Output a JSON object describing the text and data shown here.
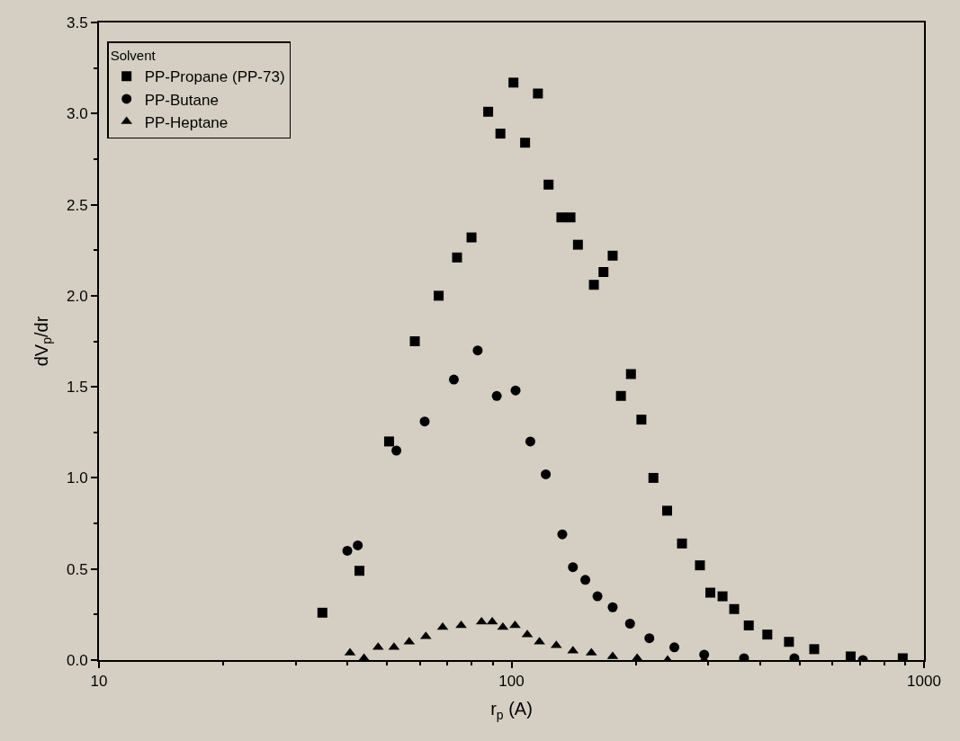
{
  "chart_data": {
    "type": "scatter",
    "xlabel": "r$_{p}$ (A)",
    "ylabel": "dV$_{p}$/dr",
    "legend_title": "Solvent",
    "legend": "top left",
    "log": "x",
    "grid": false,
    "xlim": [
      10,
      1000
    ],
    "xticks": [
      10,
      100,
      1000
    ],
    "ylim": [
      0,
      3.5
    ],
    "yticks": [
      {
        "value": 0,
        "label": "0.0"
      },
      {
        "value": 0.5,
        "label": "0.5"
      },
      {
        "value": 1,
        "label": "1.0"
      },
      {
        "value": 1.5,
        "label": "1.5"
      },
      {
        "value": 2,
        "label": "2.0"
      },
      {
        "value": 2.5,
        "label": "2.5"
      },
      {
        "value": 3,
        "label": "3.0"
      },
      {
        "value": 3.5,
        "label": "3.5"
      }
    ],
    "series": [
      {
        "name": "PP-Propane (PP-73)",
        "color": "#000000",
        "marker": "square",
        "x": [
          34.8,
          42.8,
          50.5,
          58.3,
          66.6,
          73.8,
          80.0,
          87.8,
          94.0,
          101.1,
          107.9,
          115.9,
          123.0,
          132.1,
          139.0,
          144.9,
          158.4,
          167.1,
          175.9,
          184.2,
          194.8,
          206.5,
          220.8,
          238.4,
          259.0,
          286.3,
          303.4,
          324.8,
          346.6,
          376.0,
          417.0,
          470.6,
          541.8,
          664,
          888
        ],
        "values": [
          0.26,
          0.49,
          1.2,
          1.75,
          2.0,
          2.21,
          2.32,
          3.01,
          2.89,
          3.17,
          2.84,
          3.11,
          2.61,
          2.43,
          2.43,
          2.28,
          2.06,
          2.13,
          2.22,
          1.45,
          1.57,
          1.32,
          1.0,
          0.82,
          0.64,
          0.52,
          0.37,
          0.35,
          0.28,
          0.19,
          0.14,
          0.1,
          0.06,
          0.02,
          0.01
        ]
      },
      {
        "name": "PP-Butane",
        "color": "#000000",
        "marker": "circle",
        "x": [
          40.0,
          42.4,
          52.6,
          61.6,
          72.5,
          82.8,
          92.1,
          102.3,
          111.1,
          121.1,
          132.8,
          140.9,
          151.0,
          161.6,
          175.9,
          193.8,
          215.9,
          248.2,
          293.2,
          366.2,
          485.0,
          711
        ],
        "values": [
          0.6,
          0.63,
          1.15,
          1.31,
          1.54,
          1.7,
          1.45,
          1.48,
          1.2,
          1.02,
          0.69,
          0.51,
          0.44,
          0.35,
          0.29,
          0.2,
          0.12,
          0.07,
          0.03,
          0.01,
          0.01,
          0.0
        ]
      },
      {
        "name": "PP-Heptane",
        "color": "#000000",
        "marker": "triangle",
        "x": [
          40.6,
          43.9,
          47.5,
          51.9,
          56.5,
          62.0,
          68.1,
          75.5,
          84.6,
          89.8,
          95.3,
          102.0,
          109.2,
          116.9,
          128.4,
          140.9,
          156.2,
          175.9,
          201.7,
          239,
          293
        ],
        "values": [
          0.04,
          0.01,
          0.07,
          0.07,
          0.1,
          0.13,
          0.18,
          0.19,
          0.21,
          0.21,
          0.18,
          0.19,
          0.14,
          0.1,
          0.08,
          0.05,
          0.04,
          0.02,
          0.01,
          0.0,
          0.0
        ]
      }
    ]
  }
}
